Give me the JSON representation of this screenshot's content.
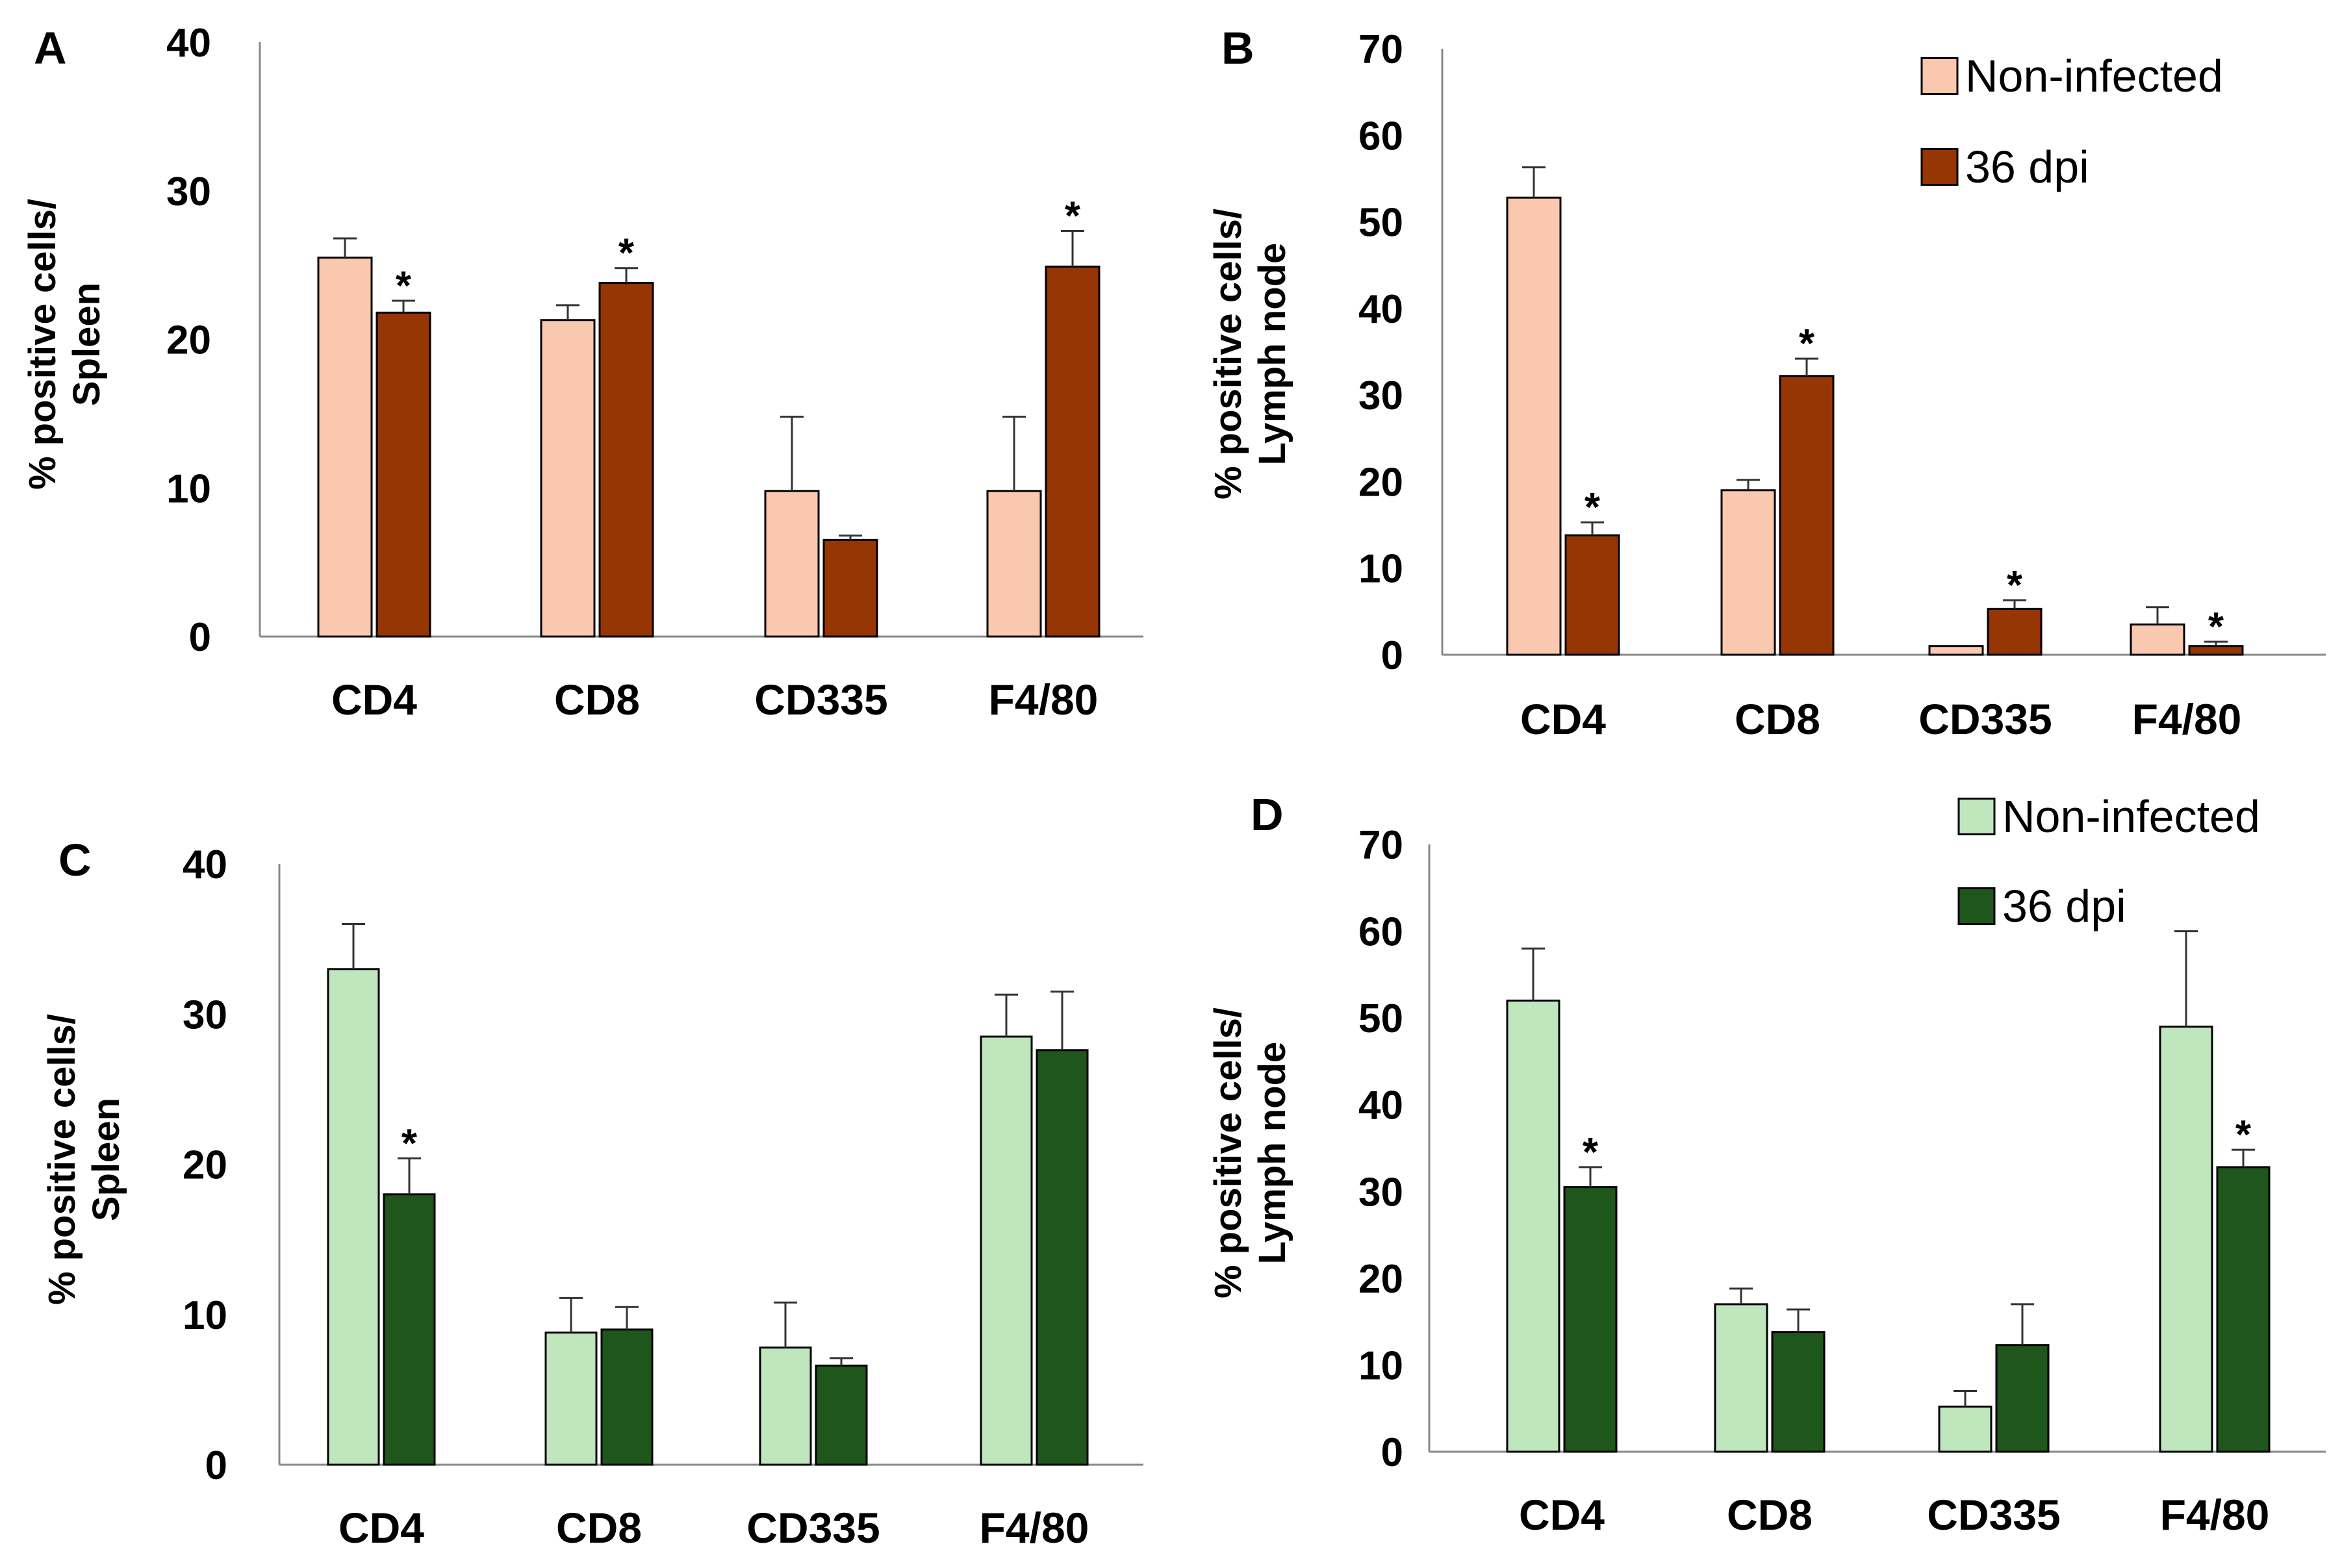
{
  "chart_data": [
    {
      "panel": "A",
      "type": "bar",
      "ylabel_lines": [
        "% positive cells/",
        "Spleen"
      ],
      "ylim": [
        0,
        40
      ],
      "yticks": [
        0,
        10,
        20,
        30,
        40
      ],
      "categories": [
        "CD4",
        "CD8",
        "CD335",
        "F4/80"
      ],
      "series": [
        {
          "name": "Non-infected",
          "color": "#FAC8AE",
          "values": [
            25.5,
            21.3,
            9.8,
            9.8
          ],
          "errors": [
            1.3,
            1.0,
            5.0,
            5.0
          ],
          "significant": [
            false,
            false,
            false,
            false
          ]
        },
        {
          "name": "36 dpi",
          "color": "#963604",
          "values": [
            21.8,
            23.8,
            6.5,
            24.9
          ],
          "errors": [
            0.8,
            1.0,
            0.3,
            2.4
          ],
          "significant": [
            true,
            true,
            false,
            true
          ]
        }
      ],
      "legend": false
    },
    {
      "panel": "B",
      "type": "bar",
      "ylabel_lines": [
        "% positive cells/",
        "Lymph node"
      ],
      "ylim": [
        0,
        70
      ],
      "yticks": [
        0,
        10,
        20,
        30,
        40,
        50,
        60,
        70
      ],
      "categories": [
        "CD4",
        "CD8",
        "CD335",
        "F4/80"
      ],
      "series": [
        {
          "name": "Non-infected",
          "color": "#FAC8AE",
          "values": [
            52.8,
            19.0,
            1.0,
            3.5
          ],
          "errors": [
            3.5,
            1.2,
            0.0,
            2.0
          ],
          "significant": [
            false,
            false,
            false,
            false
          ]
        },
        {
          "name": "36 dpi",
          "color": "#963604",
          "values": [
            13.8,
            32.2,
            5.3,
            1.0
          ],
          "errors": [
            1.5,
            2.0,
            1.0,
            0.5
          ],
          "significant": [
            true,
            true,
            true,
            true
          ]
        }
      ],
      "legend": true
    },
    {
      "panel": "C",
      "type": "bar",
      "ylabel_lines": [
        "% positive cells/",
        "Spleen"
      ],
      "ylim": [
        0,
        40
      ],
      "yticks": [
        0,
        10,
        20,
        30,
        40
      ],
      "categories": [
        "CD4",
        "CD8",
        "CD335",
        "F4/80"
      ],
      "series": [
        {
          "name": "Non-infected",
          "color": "#C0E6BE",
          "values": [
            33.0,
            8.8,
            7.8,
            28.5
          ],
          "errors": [
            3.0,
            2.3,
            3.0,
            2.8
          ],
          "significant": [
            false,
            false,
            false,
            false
          ]
        },
        {
          "name": "36 dpi",
          "color": "#1F561C",
          "values": [
            18.0,
            9.0,
            6.6,
            27.6
          ],
          "errors": [
            2.4,
            1.5,
            0.5,
            3.9
          ],
          "significant": [
            true,
            false,
            false,
            false
          ]
        }
      ],
      "legend": false
    },
    {
      "panel": "D",
      "type": "bar",
      "ylabel_lines": [
        "% positive cells/",
        "Lymph node"
      ],
      "ylim": [
        0,
        70
      ],
      "yticks": [
        0,
        10,
        20,
        30,
        40,
        50,
        60,
        70
      ],
      "categories": [
        "CD4",
        "CD8",
        "CD335",
        "F4/80"
      ],
      "series": [
        {
          "name": "Non-infected",
          "color": "#C0E6BE",
          "values": [
            52.0,
            17.0,
            5.2,
            49.0
          ],
          "errors": [
            6.0,
            1.8,
            1.8,
            11.0
          ],
          "significant": [
            false,
            false,
            false,
            false
          ]
        },
        {
          "name": "36 dpi",
          "color": "#1F561C",
          "values": [
            30.5,
            13.8,
            12.3,
            32.8
          ],
          "errors": [
            2.3,
            2.6,
            4.7,
            2.0
          ],
          "significant": [
            true,
            false,
            false,
            true
          ]
        }
      ],
      "legend": true
    }
  ],
  "significance_symbol": "*"
}
